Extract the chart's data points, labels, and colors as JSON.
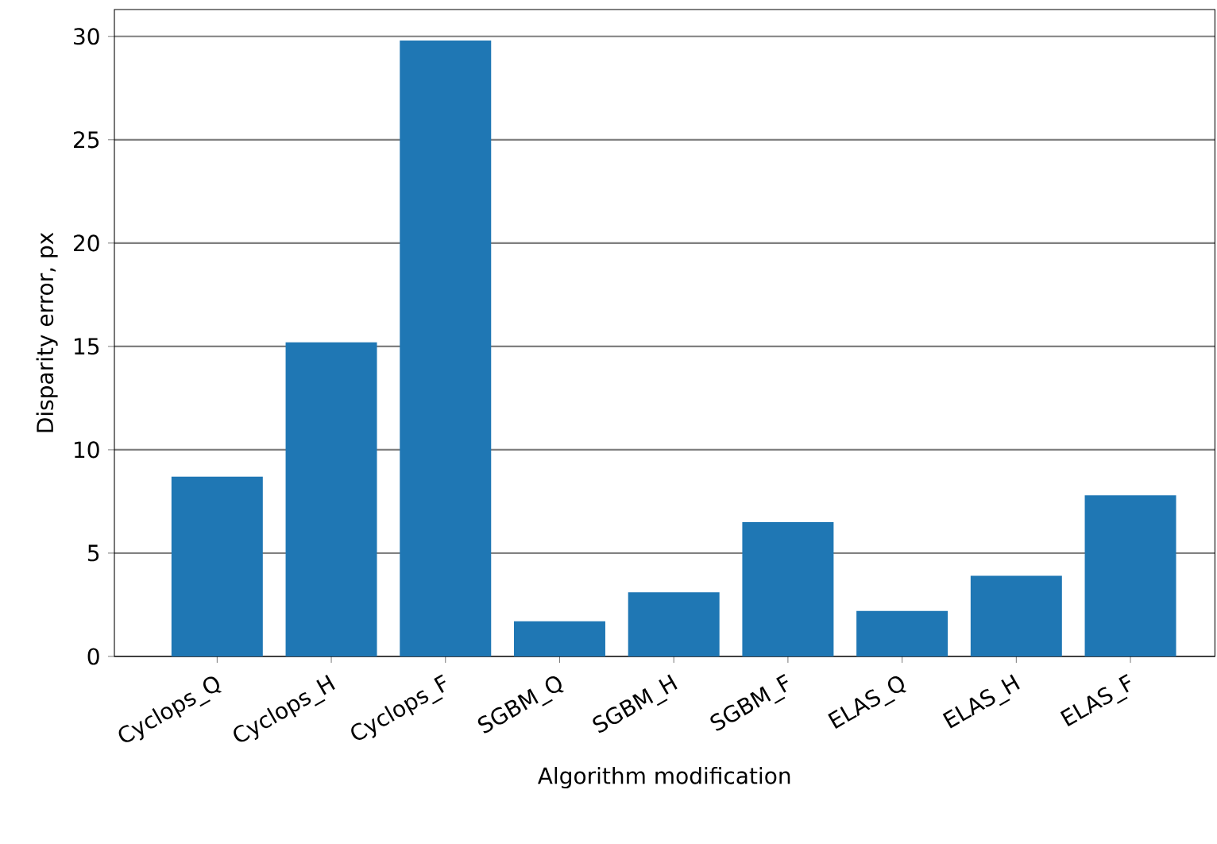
{
  "chart_data": {
    "type": "bar",
    "xlabel": "Algorithm modification",
    "ylabel": "Disparity error, px",
    "categories": [
      "Cyclops_Q",
      "Cyclops_H",
      "Cyclops_F",
      "SGBM_Q",
      "SGBM_H",
      "SGBM_F",
      "ELAS_Q",
      "ELAS_H",
      "ELAS_F"
    ],
    "values": [
      8.7,
      15.2,
      29.8,
      1.7,
      3.1,
      6.5,
      2.2,
      3.9,
      7.8
    ],
    "color": "#1f77b4",
    "ylim": [
      0,
      31.3
    ],
    "yticks": [
      0,
      5,
      10,
      15,
      20,
      25,
      30
    ],
    "grid": "y"
  }
}
